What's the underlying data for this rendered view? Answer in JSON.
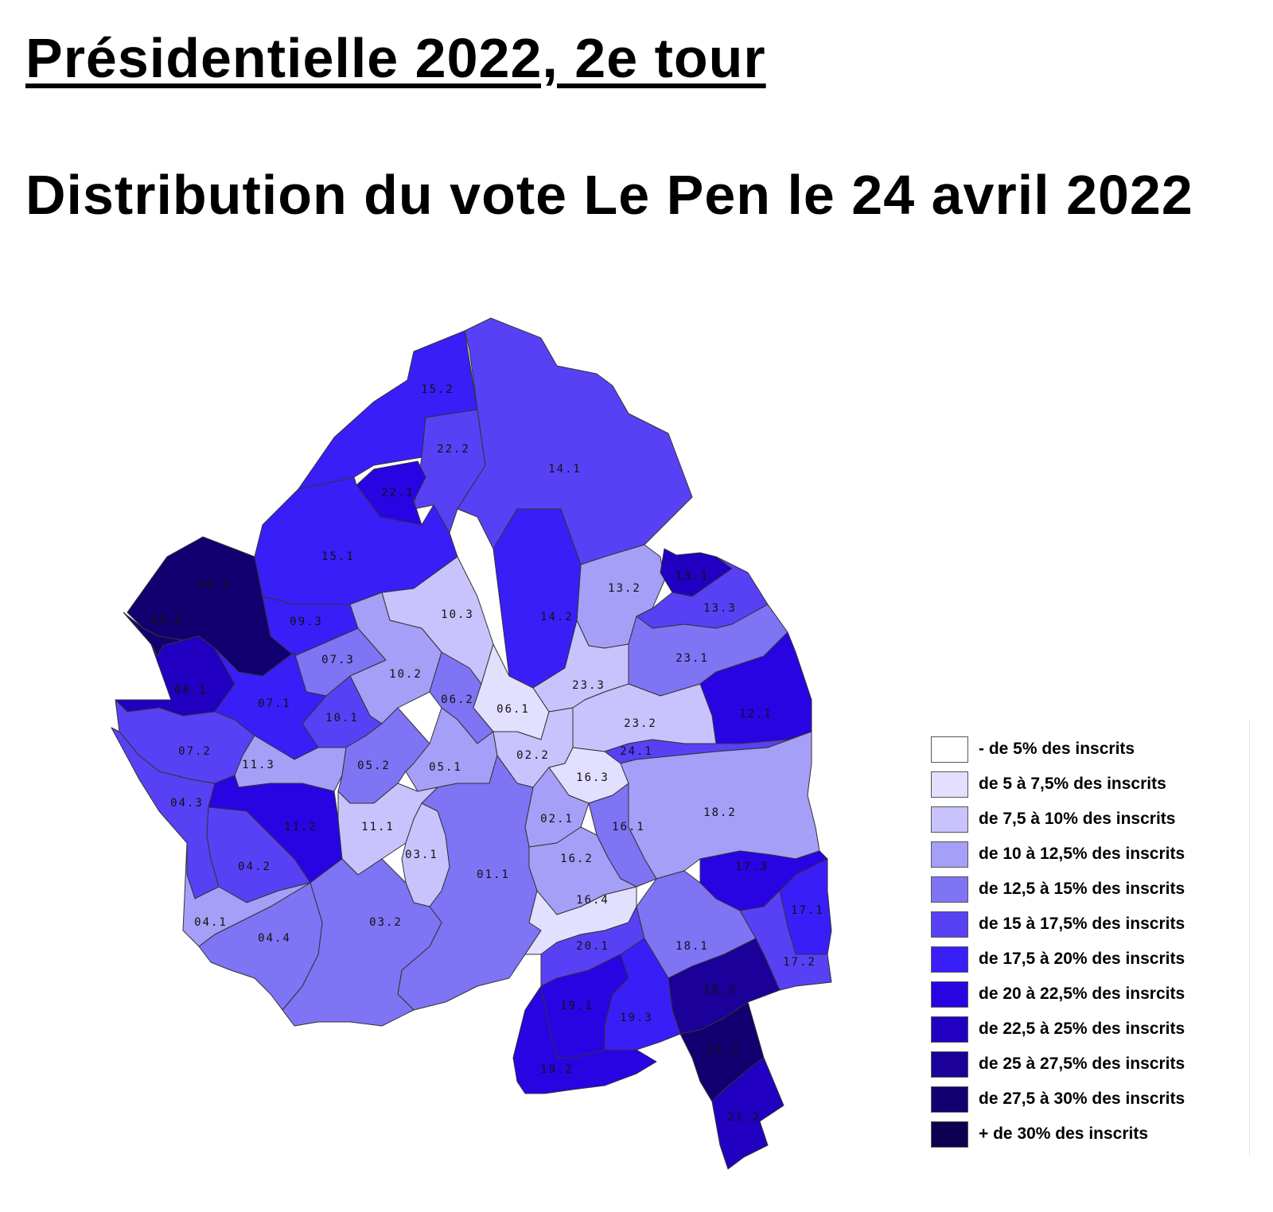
{
  "title": "Présidentielle 2022, 2e tour",
  "subtitle": "Distribution du vote Le Pen le 24 avril 2022",
  "legend": [
    {
      "label": "- de 5% des inscrits",
      "color": "#ffffff"
    },
    {
      "label": "de 5 à 7,5% des inscrits",
      "color": "#e2dfff"
    },
    {
      "label": "de 7,5 à 10% des inscrits",
      "color": "#c8c3fc"
    },
    {
      "label": "de 10 à 12,5% des inscrits",
      "color": "#a69ff7"
    },
    {
      "label": "de 12,5 à 15% des inscrits",
      "color": "#7f74f4"
    },
    {
      "label": "de 15 à 17,5% des inscrits",
      "color": "#5841f5"
    },
    {
      "label": "de 17,5 à 20% des inscrits",
      "color": "#3a1ef8"
    },
    {
      "label": "de 20 à 22,5% des insrcits",
      "color": "#2804e3"
    },
    {
      "label": "de 22,5 à 25% des inscrits",
      "color": "#2100c2"
    },
    {
      "label": "de 25 à 27,5% des inscrits",
      "color": "#1b0099"
    },
    {
      "label": "de 27,5 à 30% des inscrits",
      "color": "#130070"
    },
    {
      "label": "+ de 30% des inscrits",
      "color": "#0c0050"
    }
  ],
  "districts": [
    {
      "id": "15.2",
      "class": 6
    },
    {
      "id": "22.2",
      "class": 5
    },
    {
      "id": "14.1",
      "class": 5
    },
    {
      "id": "22.1",
      "class": 7
    },
    {
      "id": "15.1",
      "class": 6
    },
    {
      "id": "09.1",
      "class": 10
    },
    {
      "id": "09.2",
      "class": 10
    },
    {
      "id": "09.3",
      "class": 6
    },
    {
      "id": "13.2",
      "class": 3
    },
    {
      "id": "13.1",
      "class": 8
    },
    {
      "id": "13.3",
      "class": 5
    },
    {
      "id": "10.3",
      "class": 2
    },
    {
      "id": "14.2",
      "class": 6
    },
    {
      "id": "07.3",
      "class": 4
    },
    {
      "id": "10.2",
      "class": 3
    },
    {
      "id": "23.1",
      "class": 4
    },
    {
      "id": "08.1",
      "class": 8
    },
    {
      "id": "07.1",
      "class": 6
    },
    {
      "id": "06.2",
      "class": 4
    },
    {
      "id": "23.3",
      "class": 2
    },
    {
      "id": "06.1",
      "class": 1
    },
    {
      "id": "10.1",
      "class": 5
    },
    {
      "id": "12.1",
      "class": 7
    },
    {
      "id": "23.2",
      "class": 2
    },
    {
      "id": "07.2",
      "class": 5
    },
    {
      "id": "24.1",
      "class": 5
    },
    {
      "id": "11.3",
      "class": 3
    },
    {
      "id": "05.2",
      "class": 4
    },
    {
      "id": "05.1",
      "class": 3
    },
    {
      "id": "02.2",
      "class": 2
    },
    {
      "id": "16.3",
      "class": 1
    },
    {
      "id": "04.3",
      "class": 5
    },
    {
      "id": "18.2",
      "class": 3
    },
    {
      "id": "11.2",
      "class": 7
    },
    {
      "id": "02.1",
      "class": 3
    },
    {
      "id": "16.1",
      "class": 4
    },
    {
      "id": "11.1",
      "class": 2
    },
    {
      "id": "03.1",
      "class": 2
    },
    {
      "id": "16.2",
      "class": 3
    },
    {
      "id": "04.2",
      "class": 5
    },
    {
      "id": "01.1",
      "class": 4
    },
    {
      "id": "17.3",
      "class": 7
    },
    {
      "id": "17.1",
      "class": 6
    },
    {
      "id": "16.4",
      "class": 1
    },
    {
      "id": "04.1",
      "class": 3
    },
    {
      "id": "03.2",
      "class": 4
    },
    {
      "id": "04.4",
      "class": 4
    },
    {
      "id": "20.1",
      "class": 5
    },
    {
      "id": "18.1",
      "class": 4
    },
    {
      "id": "17.2",
      "class": 5
    },
    {
      "id": "18.3",
      "class": 9
    },
    {
      "id": "19.1",
      "class": 7
    },
    {
      "id": "19.3",
      "class": 6
    },
    {
      "id": "21.1",
      "class": 10
    },
    {
      "id": "19.2",
      "class": 7
    },
    {
      "id": "21.2",
      "class": 8
    }
  ]
}
